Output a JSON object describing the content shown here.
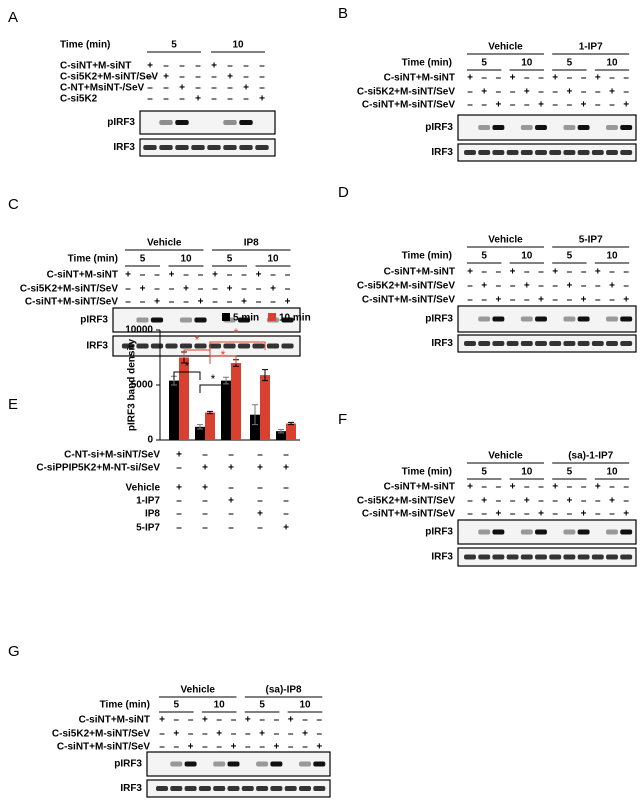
{
  "panels": [
    {
      "letter": "A",
      "time_label": "Time (min)",
      "groups": [],
      "times": [
        "5",
        "10"
      ],
      "rows": [
        {
          "label": "C-siNT+M-siNT",
          "signs": [
            "+",
            "–",
            "–",
            "–",
            "+",
            "–",
            "–",
            "–"
          ]
        },
        {
          "label": "C-si5K2+M-siNT/SeV",
          "signs": [
            "–",
            "+",
            "–",
            "–",
            "–",
            "+",
            "–",
            "–"
          ]
        },
        {
          "label": "C-NT+MsiNT-/SeV",
          "signs": [
            "–",
            "–",
            "+",
            "–",
            "–",
            "–",
            "+",
            "–"
          ]
        },
        {
          "label": "C-si5K2",
          "signs": [
            "–",
            "–",
            "–",
            "+",
            "–",
            "–",
            "–",
            "+"
          ]
        }
      ],
      "blots": [
        "pIRF3",
        "IRF3"
      ]
    },
    {
      "letter": "B",
      "time_label": "Time (min)",
      "groups": [
        "Vehicle",
        "1-IP7"
      ],
      "times": [
        "5",
        "10",
        "5",
        "10"
      ],
      "rows": [
        {
          "label": "C-siNT+M-siNT",
          "signs": [
            "+",
            "–",
            "–",
            "+",
            "–",
            "–",
            "+",
            "–",
            "–",
            "+",
            "–",
            "–"
          ]
        },
        {
          "label": "C-si5K2+M-siNT/SeV",
          "signs": [
            "–",
            "+",
            "–",
            "–",
            "+",
            "–",
            "–",
            "+",
            "–",
            "–",
            "+",
            "–"
          ]
        },
        {
          "label": "C-siNT+M-siNT/SeV",
          "signs": [
            "–",
            "–",
            "+",
            "–",
            "–",
            "+",
            "–",
            "–",
            "+",
            "–",
            "–",
            "+"
          ]
        }
      ],
      "blots": [
        "pIRF3",
        "IRF3"
      ]
    },
    {
      "letter": "C",
      "time_label": "Time (min)",
      "groups": [
        "Vehicle",
        "IP8"
      ],
      "times": [
        "5",
        "10",
        "5",
        "10"
      ],
      "rows": [
        {
          "label": "C-siNT+M-siNT",
          "signs": [
            "+",
            "–",
            "–",
            "+",
            "–",
            "–",
            "+",
            "–",
            "–",
            "+",
            "–",
            "–"
          ]
        },
        {
          "label": "C-si5K2+M-siNT/SeV",
          "signs": [
            "–",
            "+",
            "–",
            "–",
            "+",
            "–",
            "–",
            "+",
            "–",
            "–",
            "+",
            "–"
          ]
        },
        {
          "label": "C-siNT+M-siNT/SeV",
          "signs": [
            "–",
            "–",
            "+",
            "–",
            "–",
            "+",
            "–",
            "–",
            "+",
            "–",
            "–",
            "+"
          ]
        }
      ],
      "blots": [
        "pIRF3",
        "IRF3"
      ]
    },
    {
      "letter": "D",
      "time_label": "Time (min)",
      "groups": [
        "Vehicle",
        "5-IP7"
      ],
      "times": [
        "5",
        "10",
        "5",
        "10"
      ],
      "rows": [
        {
          "label": "C-siNT+M-siNT",
          "signs": [
            "+",
            "–",
            "–",
            "+",
            "–",
            "–",
            "+",
            "–",
            "–",
            "+",
            "–",
            "–"
          ]
        },
        {
          "label": "C-si5K2+M-siNT/SeV",
          "signs": [
            "–",
            "+",
            "–",
            "–",
            "+",
            "–",
            "–",
            "+",
            "–",
            "–",
            "+",
            "–"
          ]
        },
        {
          "label": "C-siNT+M-siNT/SeV",
          "signs": [
            "–",
            "–",
            "+",
            "–",
            "–",
            "+",
            "–",
            "–",
            "+",
            "–",
            "–",
            "+"
          ]
        }
      ],
      "blots": [
        "pIRF3",
        "IRF3"
      ]
    },
    {
      "letter": "F",
      "time_label": "Time (min)",
      "groups": [
        "Vehicle",
        "(sa)-1-IP7"
      ],
      "times": [
        "5",
        "10",
        "5",
        "10"
      ],
      "rows": [
        {
          "label": "C-siNT+M-siNT",
          "signs": [
            "+",
            "–",
            "–",
            "+",
            "–",
            "–",
            "+",
            "–",
            "–",
            "+",
            "–",
            "–"
          ]
        },
        {
          "label": "C-si5K2+M-siNT/SeV",
          "signs": [
            "–",
            "+",
            "–",
            "–",
            "+",
            "–",
            "–",
            "+",
            "–",
            "–",
            "+",
            "–"
          ]
        },
        {
          "label": "C-siNT+M-siNT/SeV",
          "signs": [
            "–",
            "–",
            "+",
            "–",
            "–",
            "+",
            "–",
            "–",
            "+",
            "–",
            "–",
            "+"
          ]
        }
      ],
      "blots": [
        "pIRF3",
        "IRF3"
      ]
    },
    {
      "letter": "G",
      "time_label": "Time (min)",
      "groups": [
        "Vehicle",
        "(sa)-IP8"
      ],
      "times": [
        "5",
        "10",
        "5",
        "10"
      ],
      "rows": [
        {
          "label": "C-siNT+M-siNT",
          "signs": [
            "+",
            "–",
            "–",
            "+",
            "–",
            "–",
            "+",
            "–",
            "–",
            "+",
            "–",
            "–"
          ]
        },
        {
          "label": "C-si5K2+M-siNT/SeV",
          "signs": [
            "–",
            "+",
            "–",
            "–",
            "+",
            "–",
            "–",
            "+",
            "–",
            "–",
            "+",
            "–"
          ]
        },
        {
          "label": "C-siNT+M-siNT/SeV",
          "signs": [
            "–",
            "–",
            "+",
            "–",
            "–",
            "+",
            "–",
            "–",
            "+",
            "–",
            "–",
            "+"
          ]
        }
      ],
      "blots": [
        "pIRF3",
        "IRF3"
      ]
    }
  ],
  "chart_data": {
    "type": "bar",
    "panel_label": "E",
    "ylabel": "pIRF3 band density",
    "categories": [
      null,
      null,
      null,
      null,
      null
    ],
    "series": [
      {
        "name": "5 min",
        "color": "#000000",
        "values": [
          5400,
          1200,
          5400,
          2300,
          800
        ],
        "errors": [
          400,
          200,
          300,
          900,
          150
        ]
      },
      {
        "name": "10 min",
        "color": "#d8402f",
        "values": [
          7500,
          2500,
          7000,
          5900,
          1500
        ],
        "errors": [
          500,
          100,
          300,
          500,
          100
        ]
      }
    ],
    "ylim": [
      0,
      10000
    ],
    "yticks": [
      0,
      5000,
      10000
    ],
    "conditions": [
      {
        "label": "C-NT-si+M-siNT/SeV",
        "signs": [
          "+",
          "–",
          "–",
          "–",
          "–"
        ]
      },
      {
        "label": "C-siPPIP5K2+M-NT-si/SeV",
        "signs": [
          "–",
          "+",
          "+",
          "+",
          "+"
        ]
      },
      {
        "label": "Vehicle",
        "signs": [
          "+",
          "+",
          "–",
          "–",
          "–"
        ]
      },
      {
        "label": "1-IP7",
        "signs": [
          "–",
          "–",
          "+",
          "–",
          "–"
        ]
      },
      {
        "label": "IP8",
        "signs": [
          "–",
          "–",
          "–",
          "+",
          "–"
        ]
      },
      {
        "label": "5-IP7",
        "signs": [
          "–",
          "–",
          "–",
          "–",
          "+"
        ]
      }
    ],
    "annotations": [
      "*",
      "*",
      "*",
      "*",
      "*"
    ]
  }
}
